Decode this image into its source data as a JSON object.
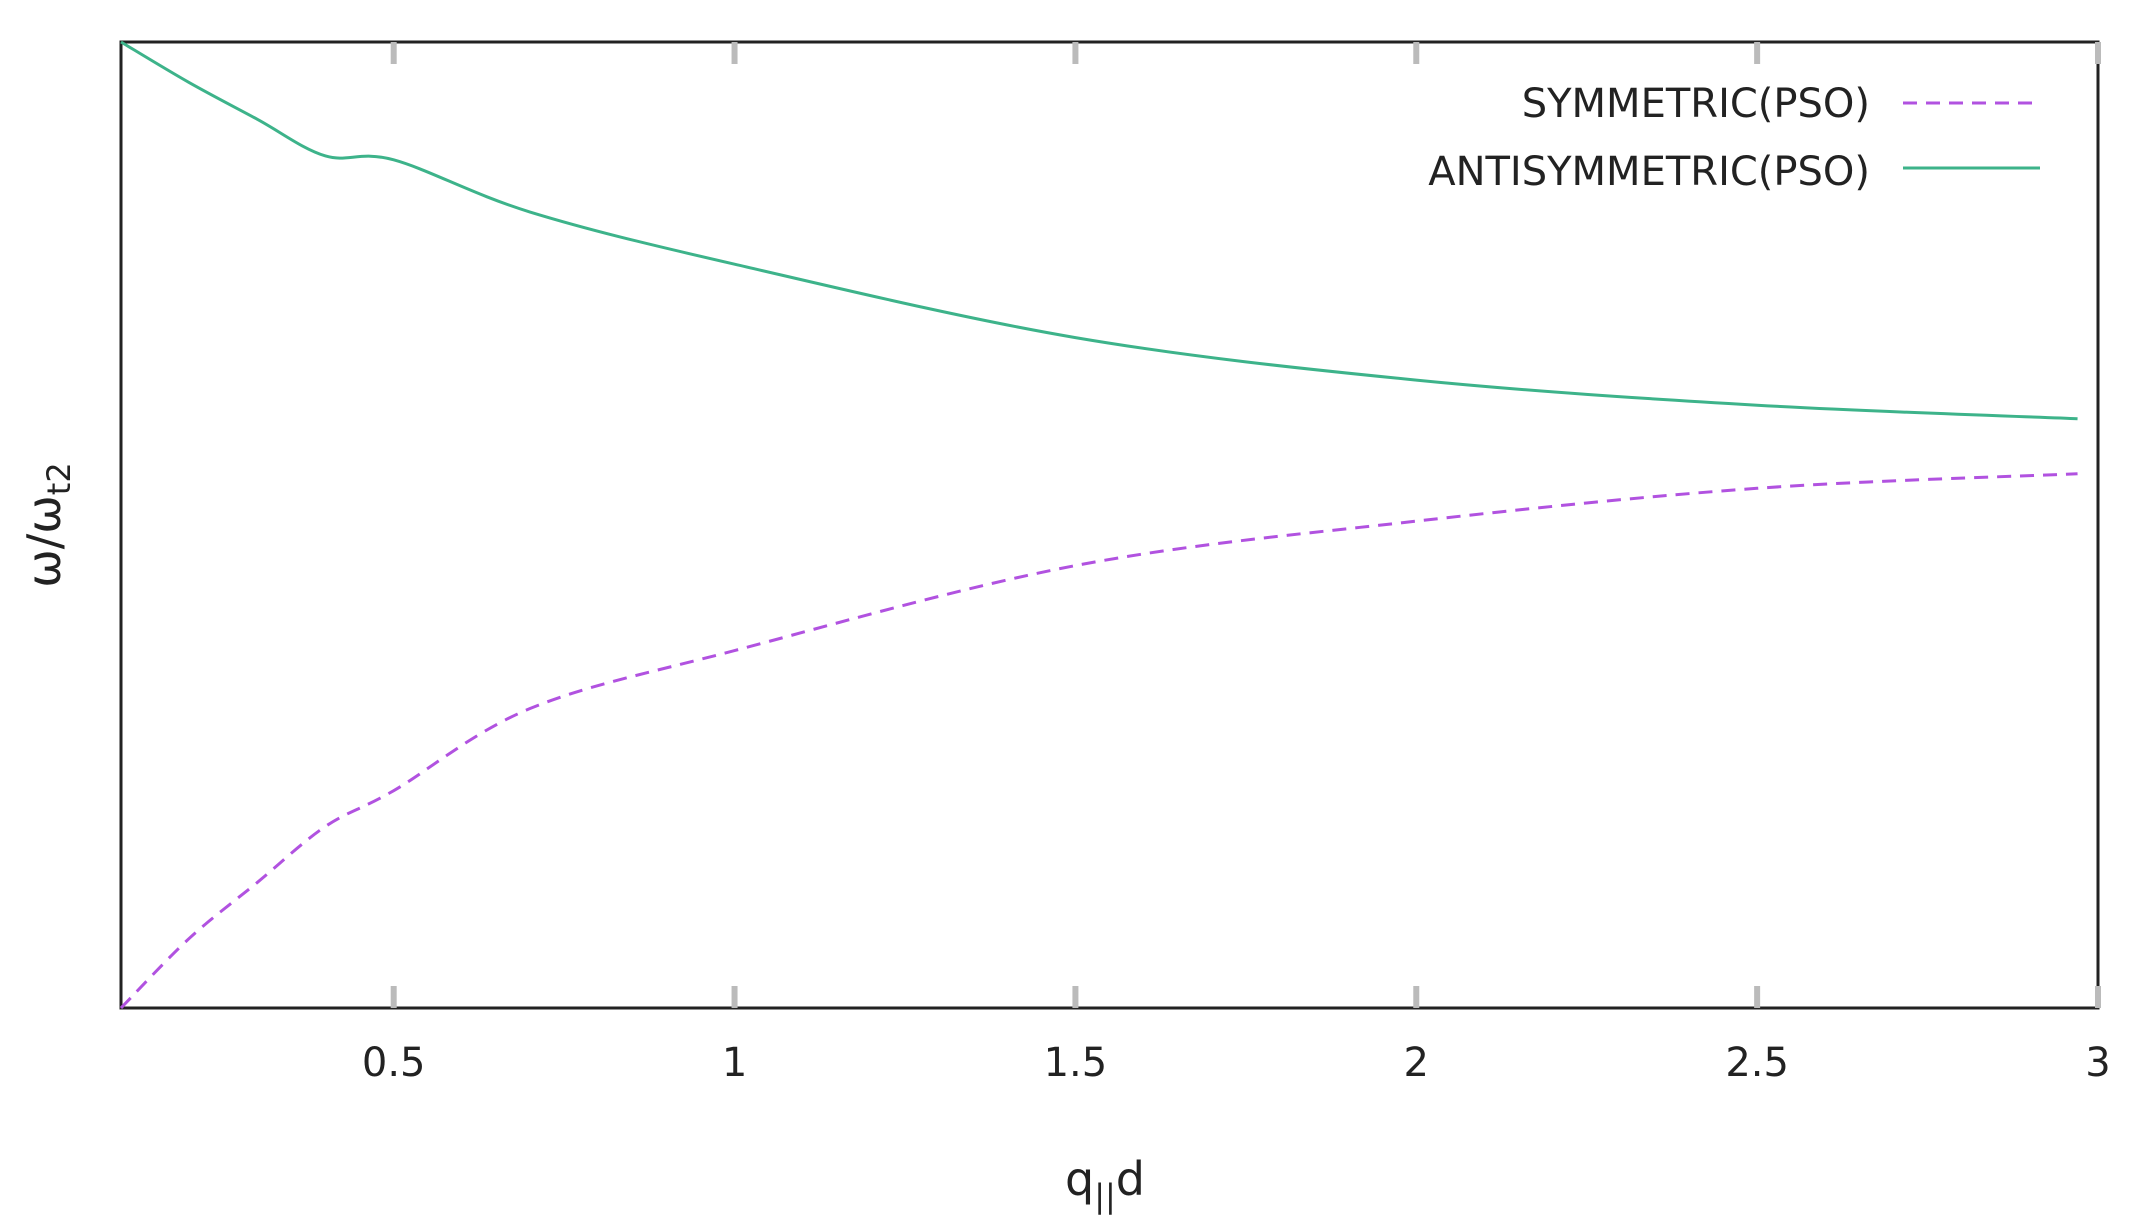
{
  "chart_data": {
    "type": "line",
    "xlabel": "q",
    "xlabel_subscript": "||",
    "xlabel_suffix": "d",
    "ylabel": "ω/ω",
    "ylabel_subscript": "t2",
    "xlim": [
      0.1,
      3.0
    ],
    "ylim": [
      0.0,
      1.0
    ],
    "y_tick_labels_shown": false,
    "x_ticks": [
      0.5,
      1,
      1.5,
      2,
      2.5,
      3
    ],
    "x_tick_labels": [
      "0.5",
      "1",
      "1.5",
      "2",
      "2.5",
      "3"
    ],
    "grid": false,
    "legend_position": "top-right",
    "series": [
      {
        "name": "SYMMETRIC(PSO)",
        "style": "dashed",
        "color": "#b152e0",
        "x": [
          0.1,
          0.2,
          0.3,
          0.4,
          0.5,
          0.7,
          1.0,
          1.5,
          2.0,
          2.5,
          2.97
        ],
        "y": [
          0.0,
          0.072,
          0.13,
          0.188,
          0.225,
          0.31,
          0.37,
          0.458,
          0.504,
          0.538,
          0.553
        ]
      },
      {
        "name": "ANTISYMMETRIC(PSO)",
        "style": "solid",
        "color": "#3db38a",
        "x": [
          0.1,
          0.2,
          0.3,
          0.4,
          0.5,
          0.7,
          1.0,
          1.5,
          2.0,
          2.5,
          2.97
        ],
        "y": [
          1.0,
          0.958,
          0.92,
          0.882,
          0.878,
          0.824,
          0.77,
          0.694,
          0.65,
          0.624,
          0.61
        ]
      }
    ]
  }
}
